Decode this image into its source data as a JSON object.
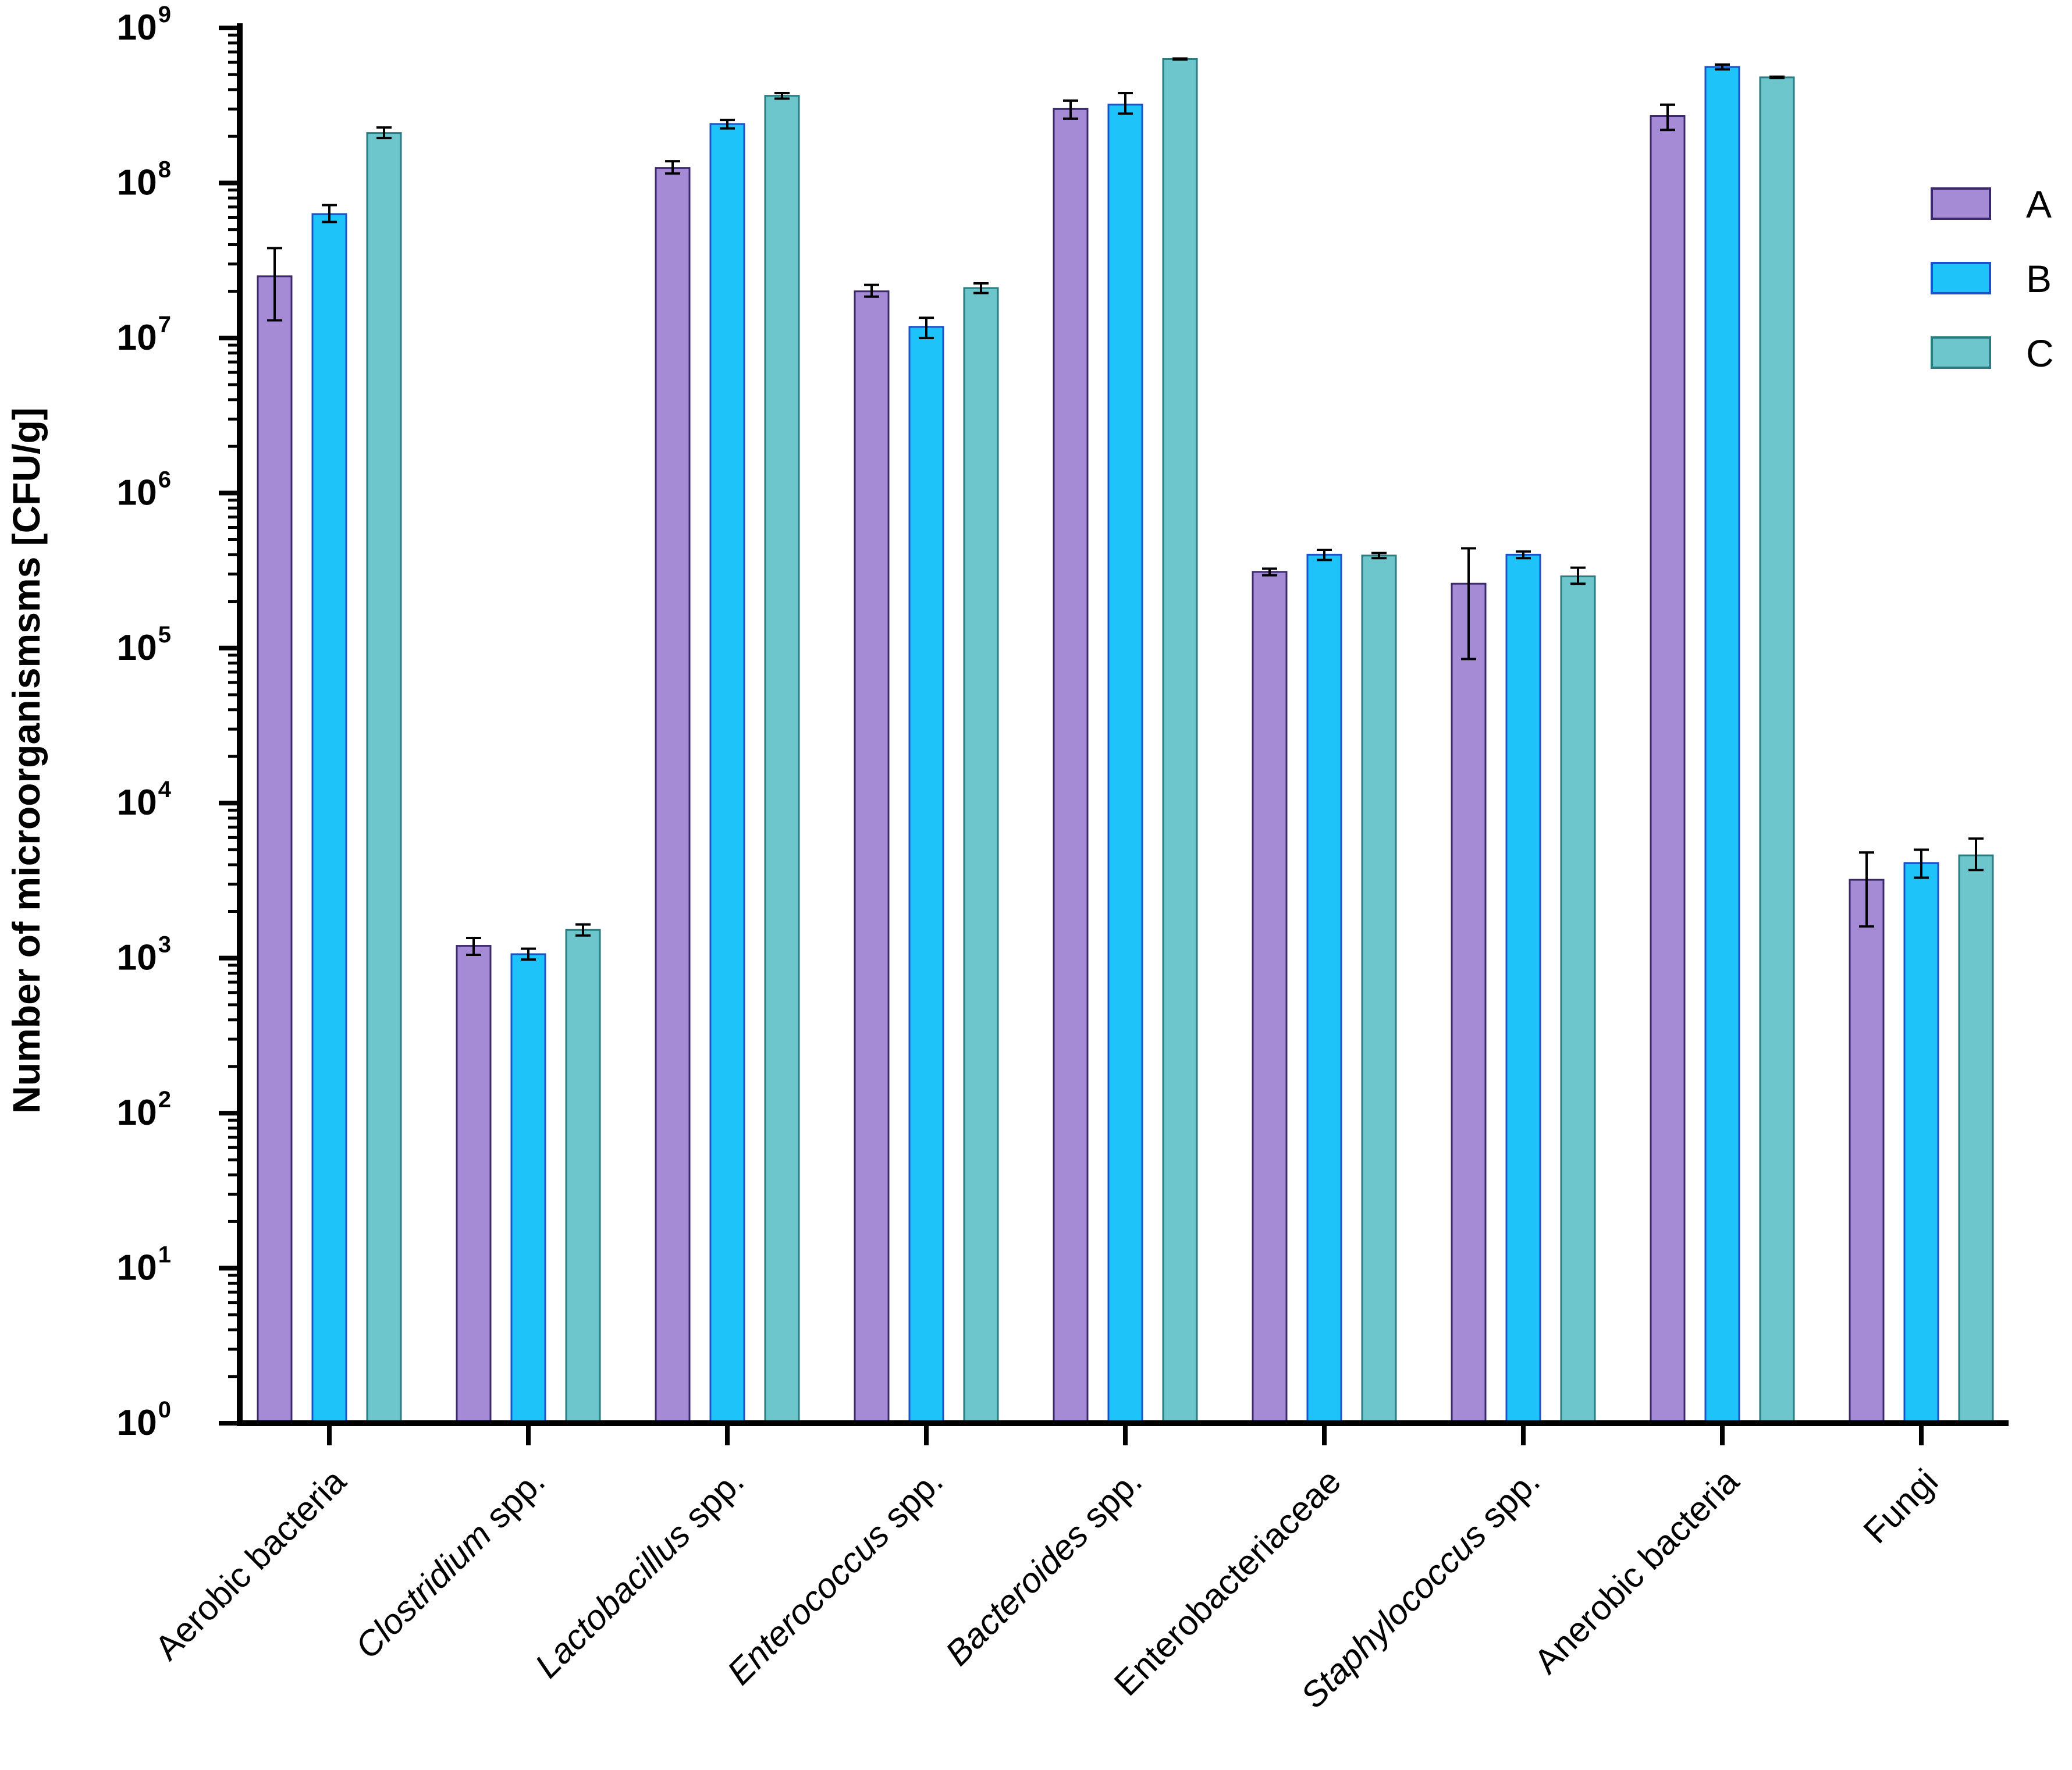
{
  "chart_data": {
    "type": "bar",
    "yscale": "log",
    "ylabel": "Number of microorganismsms [CFU/g]",
    "xlabel": "",
    "ylim": [
      1,
      1000000000
    ],
    "ytick_exponents": [
      0,
      1,
      2,
      3,
      4,
      5,
      6,
      7,
      8,
      9
    ],
    "ytick_base": "10",
    "legend_position": "right",
    "categories": [
      {
        "italic": "",
        "rest": "Aerobic bacteria"
      },
      {
        "italic": "Clostridium",
        "rest": " spp."
      },
      {
        "italic": "Lactobacillus",
        "rest": " spp."
      },
      {
        "italic": "Enterococcus",
        "rest": " spp."
      },
      {
        "italic": "Bacteroides",
        "rest": " spp."
      },
      {
        "italic": "",
        "rest": "Enterobacteriaceae"
      },
      {
        "italic": "Staphylococcus",
        "rest": " spp."
      },
      {
        "italic": "",
        "rest": "Anerobic bacteria"
      },
      {
        "italic": "",
        "rest": "Fungi"
      }
    ],
    "series": [
      {
        "name": "A",
        "color": "#a58ad6",
        "stroke": "#3b2a6b",
        "values": [
          25000000,
          1200,
          125000000,
          20000000,
          300000000,
          310000,
          260000,
          270000000,
          3200
        ],
        "err_low": [
          13000000,
          1050,
          115000000,
          18500000,
          260000000,
          295000,
          85000,
          220000000,
          1600
        ],
        "err_high": [
          38000000,
          1350,
          138000000,
          22000000,
          340000000,
          325000,
          440000,
          320000000,
          4800
        ]
      },
      {
        "name": "B",
        "color": "#1ec3f9",
        "stroke": "#1a53c9",
        "values": [
          63000000,
          1060,
          240000000,
          11800000,
          320000000,
          400000,
          400000,
          560000000,
          4100
        ],
        "err_low": [
          56000000,
          980,
          225000000,
          10000000,
          280000000,
          370000,
          380000,
          540000000,
          3300
        ],
        "err_high": [
          72000000,
          1150,
          255000000,
          13500000,
          380000000,
          430000,
          420000,
          580000000,
          5000
        ]
      },
      {
        "name": "C",
        "color": "#6cc6cc",
        "stroke": "#2a7c80",
        "values": [
          210000000,
          1520,
          365000000,
          21000000,
          630000000,
          395000,
          290000,
          480000000,
          4600
        ],
        "err_low": [
          195000000,
          1400,
          350000000,
          19500000,
          625000000,
          380000,
          260000,
          475000000,
          3700
        ],
        "err_high": [
          228000000,
          1650,
          380000000,
          22500000,
          635000000,
          410000,
          330000,
          485000000,
          5900
        ]
      }
    ]
  }
}
